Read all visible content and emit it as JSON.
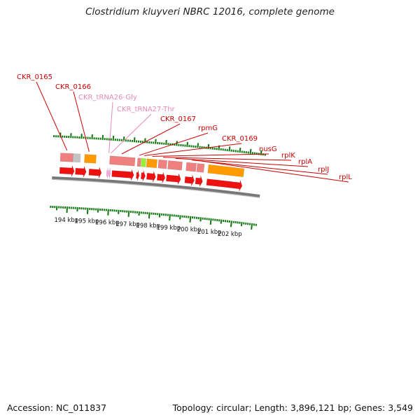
{
  "title": "Clostridium kluyveri NBRC 12016, complete genome",
  "footer": {
    "accession": "Accession: NC_011837",
    "summary": "Topology: circular; Length: 3,896,121 bp; Genes: 3,549"
  },
  "colors": {
    "cds": "#ee1111",
    "gene": "#ee8080",
    "pseudo": "#c4c4c4",
    "orange": "#ff9a00",
    "green": "#99ee33",
    "trna": "#ff99dd",
    "label": "#cc0000",
    "label_trna": "#e88ab8",
    "tick": "#117711",
    "backbone": "#777777"
  },
  "scale": [
    {
      "pos": 194,
      "label": "194 kbp"
    },
    {
      "pos": 195,
      "label": "195 kbp"
    },
    {
      "pos": 196,
      "label": "196 kbp"
    },
    {
      "pos": 197,
      "label": "197 kbp"
    },
    {
      "pos": 198,
      "label": "198 kbp"
    },
    {
      "pos": 199,
      "label": "199 kbp"
    },
    {
      "pos": 200,
      "label": "200 kbp"
    },
    {
      "pos": 201,
      "label": "201 kbp"
    },
    {
      "pos": 202,
      "label": "202 kbp"
    }
  ],
  "features": [
    {
      "type": "gene",
      "start": 193.55,
      "end": 194.15
    },
    {
      "type": "pseudo",
      "start": 194.15,
      "end": 194.5
    },
    {
      "type": "orange",
      "start": 194.7,
      "end": 195.25
    },
    {
      "type": "gene",
      "start": 195.9,
      "end": 197.1
    },
    {
      "type": "gene",
      "start": 197.22,
      "end": 197.38
    },
    {
      "type": "green",
      "start": 197.4,
      "end": 197.62
    },
    {
      "type": "orange",
      "start": 197.66,
      "end": 198.15
    },
    {
      "type": "gene",
      "start": 198.22,
      "end": 198.62
    },
    {
      "type": "gene",
      "start": 198.68,
      "end": 199.35
    },
    {
      "type": "gene",
      "start": 199.55,
      "end": 200.02
    },
    {
      "type": "gene",
      "start": 200.06,
      "end": 200.4
    },
    {
      "type": "orange",
      "start": 200.6,
      "end": 202.3
    },
    {
      "type": "cds",
      "start": 193.55,
      "end": 194.25
    },
    {
      "type": "cds",
      "start": 194.3,
      "end": 194.82
    },
    {
      "type": "cds",
      "start": 194.95,
      "end": 195.55
    },
    {
      "type": "trna",
      "start": 195.8,
      "end": 195.88
    },
    {
      "type": "trna",
      "start": 195.9,
      "end": 195.98
    },
    {
      "type": "cds",
      "start": 196.05,
      "end": 197.1
    },
    {
      "type": "cds",
      "start": 197.22,
      "end": 197.36
    },
    {
      "type": "cds",
      "start": 197.45,
      "end": 197.65
    },
    {
      "type": "cds",
      "start": 197.72,
      "end": 198.15
    },
    {
      "type": "cds",
      "start": 198.22,
      "end": 198.6
    },
    {
      "type": "cds",
      "start": 198.66,
      "end": 199.35
    },
    {
      "type": "cds",
      "start": 199.55,
      "end": 200.0
    },
    {
      "type": "cds",
      "start": 200.06,
      "end": 200.4
    },
    {
      "type": "cds",
      "start": 200.6,
      "end": 202.3
    }
  ],
  "labels": [
    {
      "text": "CKR_0165",
      "at": 193.85,
      "kind": "gene"
    },
    {
      "text": "CKR_0166",
      "at": 194.9,
      "kind": "gene"
    },
    {
      "text": "CKR_tRNA26-Gly",
      "at": 195.84,
      "kind": "trna"
    },
    {
      "text": "CKR_tRNA27-Thr",
      "at": 195.94,
      "kind": "trna"
    },
    {
      "text": "CKR_0167",
      "at": 196.45,
      "kind": "gene"
    },
    {
      "text": "rpmG",
      "at": 197.29,
      "kind": "gene"
    },
    {
      "text": "CKR_0169",
      "at": 197.52,
      "kind": "gene"
    },
    {
      "text": "nusG",
      "at": 197.9,
      "kind": "gene"
    },
    {
      "text": "rplK",
      "at": 198.42,
      "kind": "gene"
    },
    {
      "text": "rplA",
      "at": 199.0,
      "kind": "gene"
    },
    {
      "text": "rplJ",
      "at": 199.78,
      "kind": "gene"
    },
    {
      "text": "rplL",
      "at": 200.23,
      "kind": "gene"
    }
  ]
}
